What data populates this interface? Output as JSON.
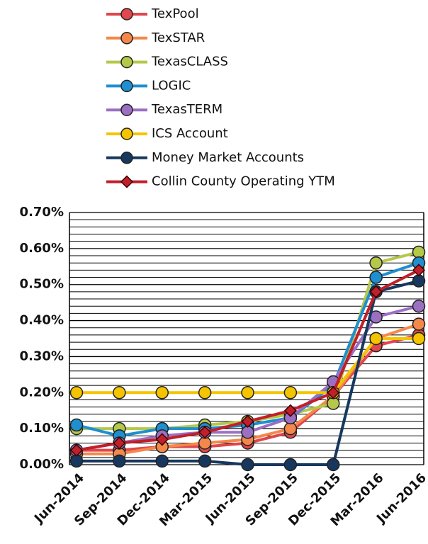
{
  "chart_data": {
    "type": "line",
    "categories": [
      "Jun-2014",
      "Sep-2014",
      "Dec-2014",
      "Mar-2015",
      "Jun-2015",
      "Sep-2015",
      "Dec-2015",
      "Mar-2016",
      "Jun-2016"
    ],
    "series": [
      {
        "name": "TexPool",
        "color": "#e0474c",
        "marker": "circle",
        "values": [
          0.04,
          0.04,
          0.05,
          0.05,
          0.06,
          0.09,
          0.19,
          0.33,
          0.36
        ]
      },
      {
        "name": "TexSTAR",
        "color": "#f4884a",
        "marker": "circle",
        "values": [
          0.03,
          0.03,
          0.05,
          0.06,
          0.07,
          0.1,
          0.19,
          0.35,
          0.39
        ]
      },
      {
        "name": "TexasCLASS",
        "color": "#b5c84a",
        "marker": "circle",
        "values": [
          0.1,
          0.1,
          0.1,
          0.11,
          0.12,
          0.14,
          0.17,
          0.56,
          0.59
        ]
      },
      {
        "name": "LOGIC",
        "color": "#1f8fd0",
        "marker": "circle",
        "values": [
          0.11,
          0.08,
          0.1,
          0.1,
          0.11,
          0.13,
          0.22,
          0.52,
          0.56
        ]
      },
      {
        "name": "TexasTERM",
        "color": "#9b6fc2",
        "marker": "circle",
        "values": [
          0.04,
          0.06,
          0.08,
          0.09,
          0.09,
          0.13,
          0.23,
          0.41,
          0.44
        ]
      },
      {
        "name": "ICS Account",
        "color": "#f5c400",
        "marker": "circle",
        "values": [
          0.2,
          0.2,
          0.2,
          0.2,
          0.2,
          0.2,
          0.2,
          0.35,
          0.35
        ]
      },
      {
        "name": "Money Market Accounts",
        "color": "#17375e",
        "marker": "circle",
        "values": [
          0.01,
          0.01,
          0.01,
          0.01,
          0.0,
          0.0,
          0.0,
          0.48,
          0.51
        ]
      },
      {
        "name": "Collin County Operating YTM",
        "color": "#c0202a",
        "marker": "diamond",
        "values": [
          0.04,
          0.06,
          0.07,
          0.09,
          0.12,
          0.15,
          0.2,
          0.48,
          0.54
        ]
      }
    ],
    "ylim": [
      0,
      0.7
    ],
    "yticks": [
      {
        "value": 0,
        "label": "0.00%"
      },
      {
        "value": 0.1,
        "label": "0.10%"
      },
      {
        "value": 0.2,
        "label": "0.20%"
      },
      {
        "value": 0.3,
        "label": "0.30%"
      },
      {
        "value": 0.4,
        "label": "0.40%"
      },
      {
        "value": 0.5,
        "label": "0.50%"
      },
      {
        "value": 0.6,
        "label": "0.60%"
      },
      {
        "value": 0.7,
        "label": "0.70%"
      }
    ],
    "yminorticks": [
      0.02,
      0.04,
      0.06,
      0.08,
      0.12,
      0.14,
      0.16,
      0.18,
      0.22,
      0.24,
      0.26,
      0.28,
      0.32,
      0.34,
      0.36,
      0.38,
      0.42,
      0.44,
      0.46,
      0.48,
      0.52,
      0.54,
      0.56,
      0.58,
      0.62,
      0.64,
      0.66,
      0.68
    ],
    "grid": true,
    "legend": "top"
  }
}
